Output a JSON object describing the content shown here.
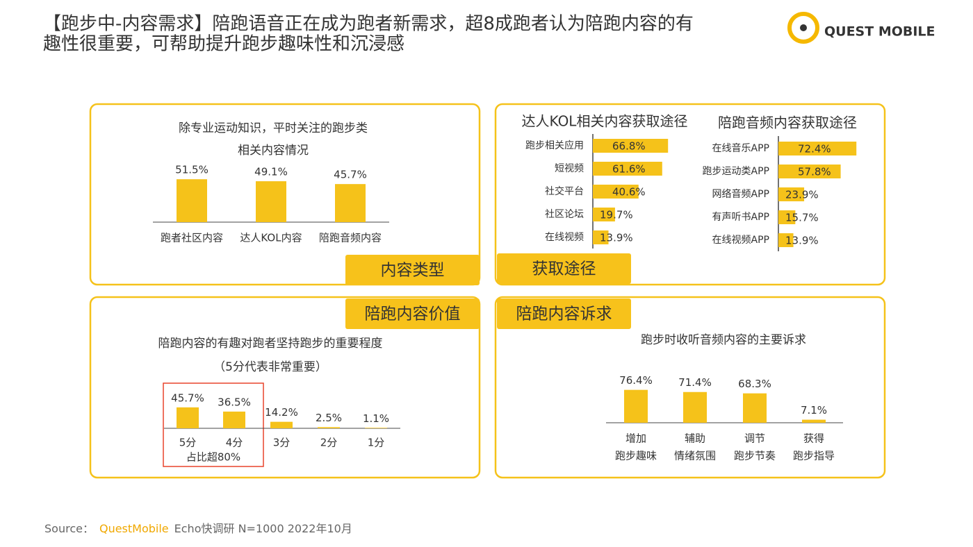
{
  "title": [
    "【跑步中-内容需求】陪跑语音正在成为跑者新需求，超8成跑者认为陪跑内容的有",
    "趣性很重要，可帮助提升跑步趣味性和沉浸感"
  ],
  "logo": "QUEST MOBILE",
  "tags": [
    "内容类型",
    "获取途径",
    "陪跑内容价值",
    "陪跑内容诉求"
  ],
  "highlight_label": "占比超80%",
  "source": {
    "label": "Source：",
    "brand": "QuestMobile",
    "text": "Echo快调研 N=1000 2022年10月"
  },
  "chart_data": [
    {
      "type": "bar",
      "title": [
        "除专业运动知识，平时关注的跑步类",
        "相关内容情况"
      ],
      "color": "#f5c21a",
      "categories": [
        "跑者社区内容",
        "达人KOL内容",
        "陪跑音频内容"
      ],
      "values": [
        51.5,
        49.1,
        45.7
      ],
      "value_labels": [
        "51.5%",
        "49.1%",
        "45.7%"
      ]
    },
    {
      "type": "barh",
      "title": [
        "达人KOL相关内容获取途径"
      ],
      "color": "#f5c21a",
      "categories": [
        "跑步相关应用",
        "短视频",
        "社交平台",
        "社区论坛",
        "在线视频"
      ],
      "values": [
        66.8,
        61.6,
        40.6,
        19.7,
        13.9
      ],
      "value_labels": [
        "66.8%",
        "61.6%",
        "40.6%",
        "19.7%",
        "13.9%"
      ]
    },
    {
      "type": "barh",
      "title": [
        "陪跑音频内容获取途径"
      ],
      "color": "#f5c21a",
      "categories": [
        "在线音乐APP",
        "跑步运动类APP",
        "网络音频APP",
        "有声听书APP",
        "在线视频APP"
      ],
      "values": [
        72.4,
        57.8,
        23.9,
        15.7,
        13.9
      ],
      "value_labels": [
        "72.4%",
        "57.8%",
        "23.9%",
        "15.7%",
        "13.9%"
      ]
    },
    {
      "type": "bar",
      "title": [
        "陪跑内容的有趣对跑者坚持跑步的重要程度",
        "（5分代表非常重要）"
      ],
      "color": "#f5c21a",
      "categories": [
        "5分",
        "4分",
        "3分",
        "2分",
        "1分"
      ],
      "values": [
        45.7,
        36.5,
        14.2,
        2.5,
        1.1
      ],
      "value_labels": [
        "45.7%",
        "36.5%",
        "14.2%",
        "2.5%",
        "1.1%"
      ]
    },
    {
      "type": "bar",
      "title": [
        "跑步时收听音频内容的主要诉求"
      ],
      "color": "#f5c21a",
      "categories": [
        [
          "增加",
          "跑步趣味"
        ],
        [
          "辅助",
          "情绪氛围"
        ],
        [
          "调节",
          "跑步节奏"
        ],
        [
          "获得",
          "跑步指导"
        ]
      ],
      "values": [
        76.4,
        71.4,
        68.3,
        7.1
      ],
      "value_labels": [
        "76.4%",
        "71.4%",
        "68.3%",
        "7.1%"
      ]
    }
  ]
}
